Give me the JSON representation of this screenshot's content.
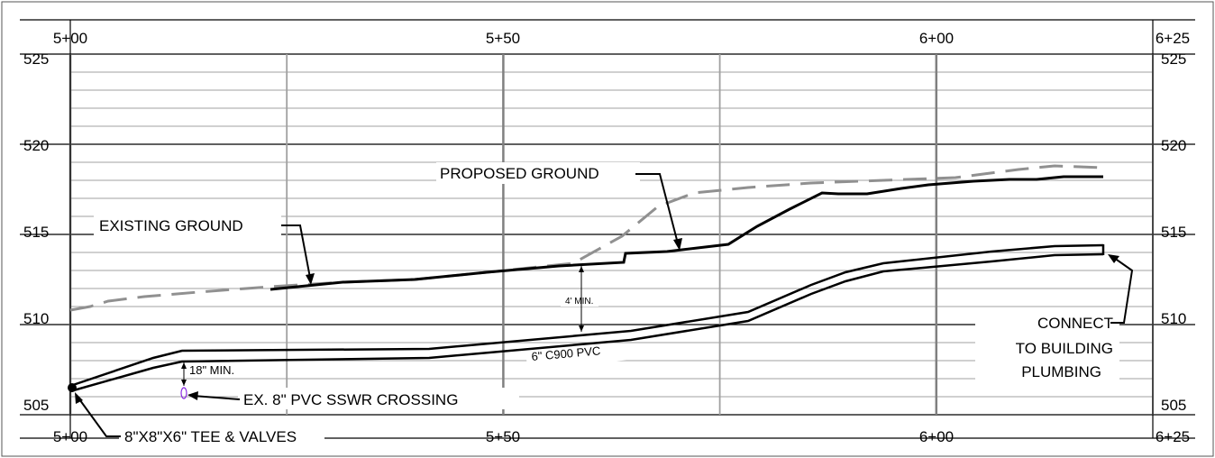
{
  "sheet": {
    "station_labels_top": [
      "5+00",
      "5+50",
      "6+00",
      "6+25"
    ],
    "station_labels_bottom": [
      "5+00",
      "5+50",
      "6+00",
      "6+25"
    ],
    "elevation_labels_left": [
      "525",
      "520",
      "515",
      "510",
      "505"
    ],
    "elevation_labels_right": [
      "525",
      "520",
      "515",
      "510",
      "505"
    ]
  },
  "callouts": {
    "proposed_ground": "PROPOSED GROUND",
    "existing_ground": "EXISTING GROUND",
    "min_cover": "4' MIN.",
    "pipe": "6\" C900 PVC",
    "clearance": "18\" MIN.",
    "crossing": "EX. 8\" PVC SSWR CROSSING",
    "tee": "8\"X8\"X6\" TEE & VALVES",
    "connect_line1": "CONNECT",
    "connect_line2": "TO BUILDING",
    "connect_line3": "PLUMBING"
  },
  "colors": {
    "grid": "#a0a0a0",
    "line": "#000000",
    "existing_ground": "#909090",
    "sswr_crossing": "#8a2be2"
  }
}
